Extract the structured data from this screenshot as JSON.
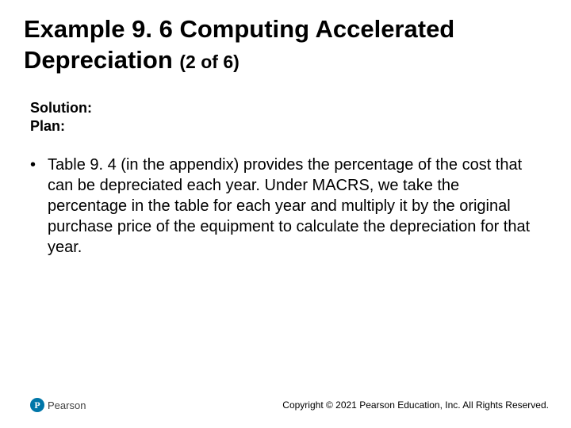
{
  "title": {
    "line1": "Example 9. 6 Computing Accelerated",
    "line2_main": "Depreciation ",
    "line2_sub": "(2 of 6)"
  },
  "subtitle": {
    "line1": "Solution:",
    "line2": "Plan:"
  },
  "bullet": {
    "text": "Table 9. 4 (in the appendix) provides the percentage of the cost that can be depreciated each year. Under MACRS, we take the percentage in the table for each year and multiply it by the original purchase price of the equipment to calculate the depreciation for that year."
  },
  "footer": {
    "brand_initial": "P",
    "brand": "Pearson",
    "copyright": "Copyright © 2021 Pearson Education, Inc. All Rights Reserved."
  },
  "colors": {
    "text": "#000000",
    "brand_blue": "#0076a8",
    "brand_gray": "#414141",
    "background": "#ffffff"
  }
}
